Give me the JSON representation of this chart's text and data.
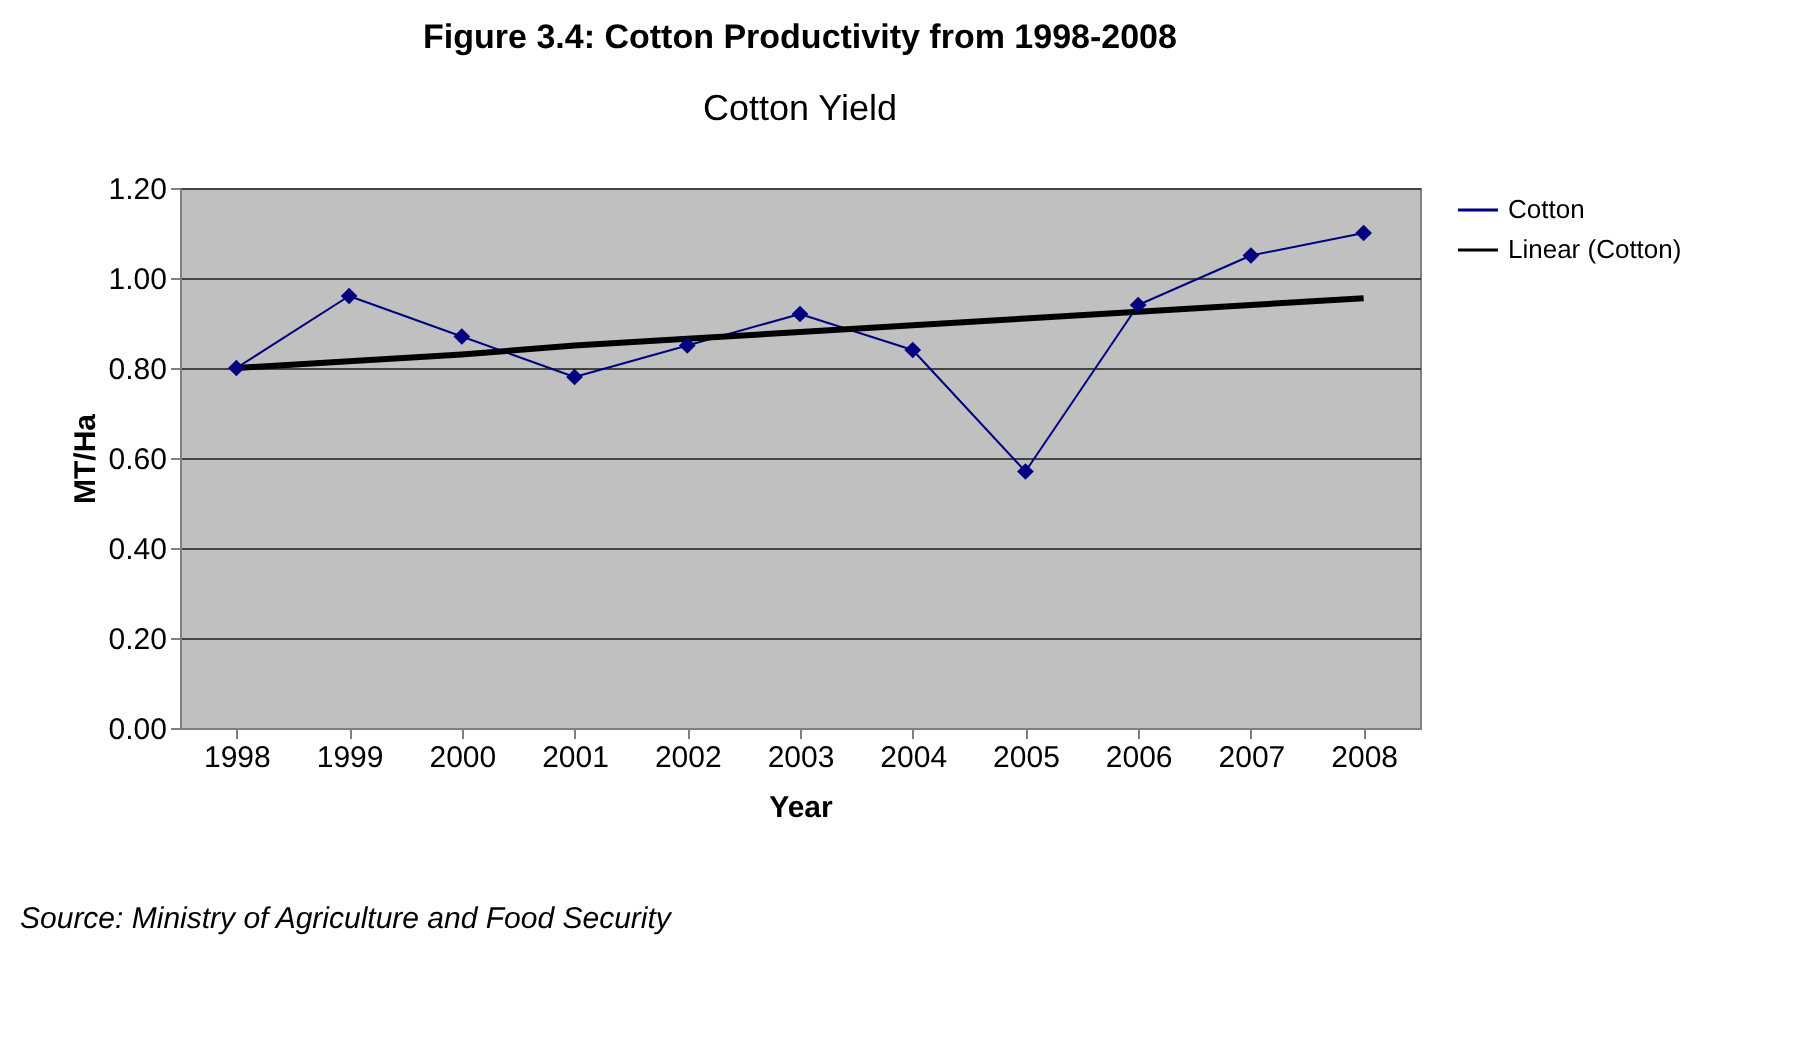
{
  "chart_data": {
    "type": "line",
    "title": "Figure 3.4: Cotton Productivity from 1998-2008",
    "subtitle": "Cotton Yield",
    "xlabel": "Year",
    "ylabel": "MT/Ha",
    "categories": [
      "1998",
      "1999",
      "2000",
      "2001",
      "2002",
      "2003",
      "2004",
      "2005",
      "2006",
      "2007",
      "2008"
    ],
    "series": [
      {
        "name": "Cotton",
        "color": "#000080",
        "marker": "diamond",
        "values": [
          0.8,
          0.96,
          0.87,
          0.78,
          0.85,
          0.92,
          0.84,
          0.57,
          0.94,
          1.05,
          1.1
        ]
      },
      {
        "name": "Linear (Cotton)",
        "type": "line",
        "color": "#000000",
        "marker": "none",
        "values": [
          0.8,
          0.815,
          0.83,
          0.85,
          0.865,
          0.88,
          0.895,
          0.91,
          0.925,
          0.94,
          0.955
        ]
      }
    ],
    "ylim": [
      0,
      1.2
    ],
    "yticks": [
      {
        "value": 0,
        "label": "0.00"
      },
      {
        "value": 0.2,
        "label": "0.20"
      },
      {
        "value": 0.4,
        "label": "0.40"
      },
      {
        "value": 0.6,
        "label": "0.60"
      },
      {
        "value": 0.8,
        "label": "0.80"
      },
      {
        "value": 1.0,
        "label": "1.00"
      },
      {
        "value": 1.2,
        "label": "1.20"
      }
    ],
    "grid": "y",
    "legend": "right",
    "annotations": [
      "Source: Ministry of Agriculture and Food Security"
    ]
  }
}
